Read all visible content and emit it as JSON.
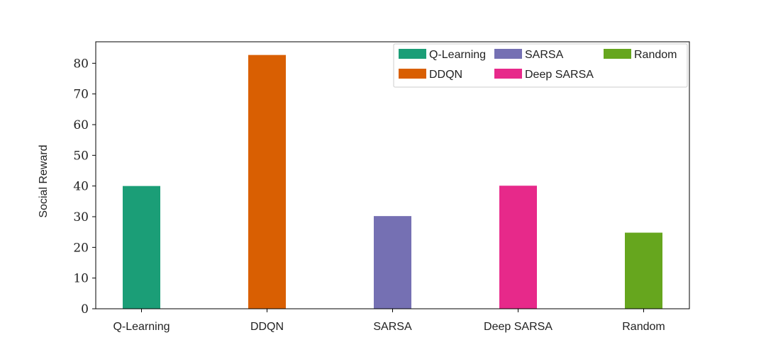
{
  "chart_data": {
    "type": "bar",
    "categories": [
      "Q-Learning",
      "DDQN",
      "SARSA",
      "Deep SARSA",
      "Random"
    ],
    "values": [
      40,
      82.7,
      30.2,
      40.1,
      24.8
    ],
    "colors": [
      "#1b9e77",
      "#d95f02",
      "#7570b3",
      "#e7298a",
      "#66a61e"
    ],
    "ylabel": "Social Reward",
    "xlabel": "",
    "ylim": [
      0,
      87
    ],
    "yticks": [
      0,
      10,
      20,
      30,
      40,
      50,
      60,
      70,
      80
    ],
    "grid": false,
    "legend": {
      "placement": "top-right",
      "columns": 3,
      "entries": [
        "Q-Learning",
        "DDQN",
        "SARSA",
        "Deep SARSA",
        "Random"
      ]
    }
  }
}
